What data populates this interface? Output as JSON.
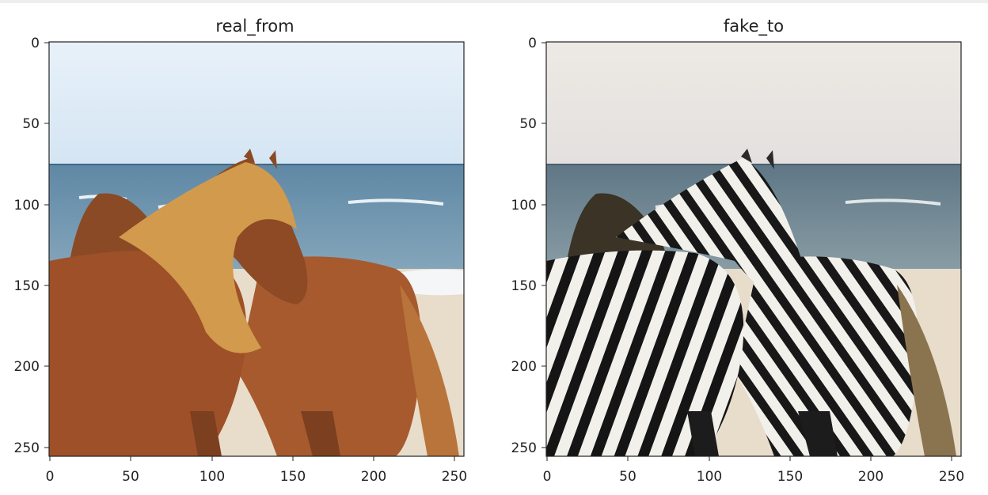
{
  "panels": [
    {
      "title": "real_from",
      "xticks": [
        "0",
        "50",
        "100",
        "150",
        "200",
        "250"
      ],
      "yticks": [
        "0",
        "50",
        "100",
        "150",
        "200",
        "250"
      ],
      "image": {
        "subject": "horses-on-beach",
        "sky": "#dcebf7",
        "sea": "#6d93ad",
        "coat": "#a2552a",
        "mane": "#d39a4d",
        "sand": "#e6d8c3"
      }
    },
    {
      "title": "fake_to",
      "xticks": [
        "0",
        "50",
        "100",
        "150",
        "200",
        "250"
      ],
      "yticks": [
        "0",
        "50",
        "100",
        "150",
        "200",
        "250"
      ],
      "image": {
        "subject": "zebras-on-beach",
        "sky": "#e8e5e3",
        "sea": "#6f8796",
        "stripe_dark": "#151515",
        "stripe_light": "#f2f0ea",
        "sand": "#e6d8c3"
      }
    }
  ]
}
